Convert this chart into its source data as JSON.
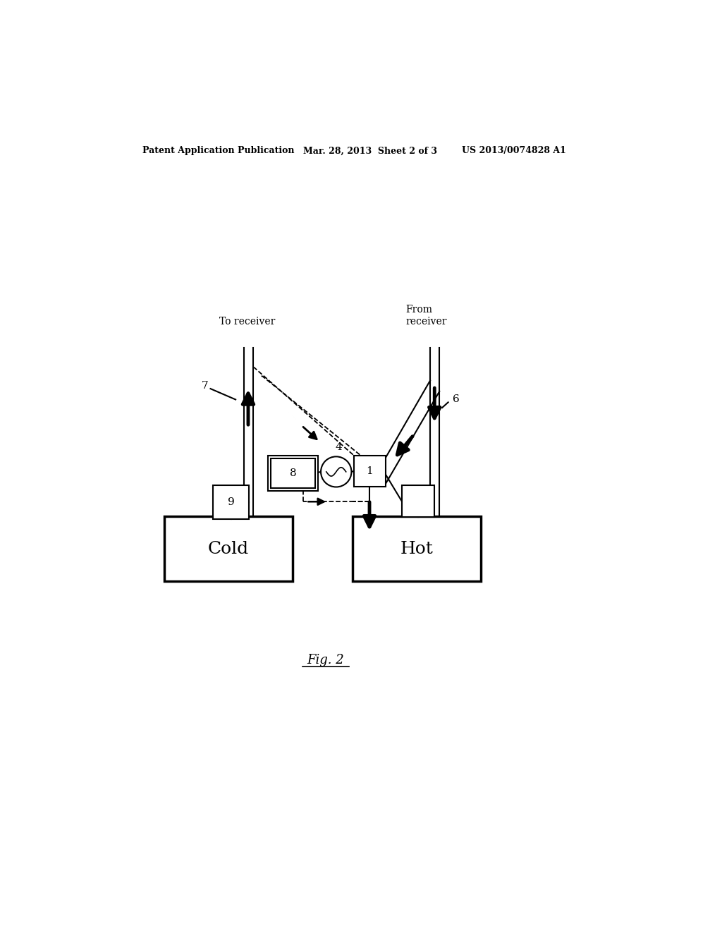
{
  "bg_color": "#ffffff",
  "header_left": "Patent Application Publication",
  "header_mid": "Mar. 28, 2013  Sheet 2 of 3",
  "header_right": "US 2013/0074828 A1",
  "fig_label": "Fig. 2",
  "cold_tank_label": "Cold",
  "hot_tank_label": "Hot",
  "to_receiver_label": "To receiver",
  "from_receiver_label": "From\nreceiver"
}
